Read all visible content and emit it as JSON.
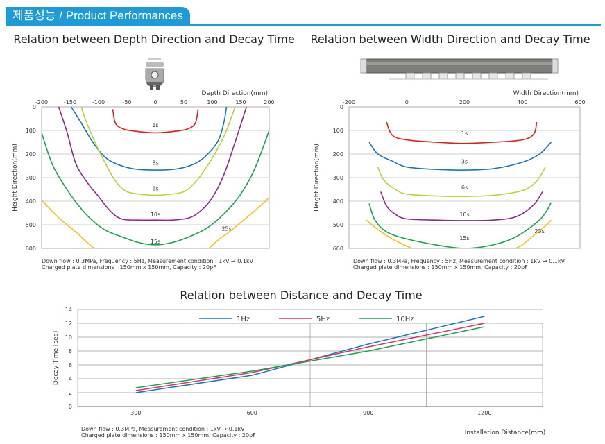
{
  "header": {
    "title_ko": "제품성능",
    "title_en": " / Product Performances"
  },
  "chart_data": [
    {
      "type": "line",
      "title": "Relation between Depth Direction and Decay Time",
      "xlabel": "Depth Direction(mm)",
      "ylabel": "Height Direction(mm)",
      "xlim": [
        -200,
        200
      ],
      "ylim": [
        0,
        600
      ],
      "xticks": [
        "-200",
        "-150",
        "-100",
        "-50",
        "0",
        "50",
        "100",
        "150",
        "200"
      ],
      "yticks": [
        "0",
        "100",
        "200",
        "300",
        "400",
        "500",
        "600"
      ],
      "notes": [
        "Down flow : 0.3MPa, Frequency : 5Hz, Measurement condition : 1kV → 0.1kV",
        "Charged plate dimensions : 150mm x 150mm, Capacity : 20pF"
      ],
      "series": [
        {
          "name": "1s",
          "color": "#e02020",
          "label_at": [
            0,
            85
          ],
          "x": [
            -75,
            -70,
            -55,
            -30,
            0,
            30,
            55,
            70,
            75
          ],
          "y": [
            10,
            70,
            95,
            105,
            110,
            105,
            95,
            70,
            10
          ]
        },
        {
          "name": "3s",
          "color": "#1a75bb",
          "label_at": [
            0,
            245
          ],
          "x": [
            -148,
            -130,
            -110,
            -90,
            -70,
            -40,
            0,
            40,
            70,
            90,
            110,
            120,
            125
          ],
          "y": [
            0,
            70,
            150,
            210,
            240,
            262,
            268,
            262,
            240,
            205,
            145,
            70,
            0
          ]
        },
        {
          "name": "6s",
          "color": "#b8d238",
          "label_at": [
            0,
            355
          ],
          "x": [
            -130,
            -125,
            -110,
            -90,
            -70,
            -50,
            -20,
            0,
            20,
            50,
            70,
            90,
            110,
            125,
            140
          ],
          "y": [
            0,
            40,
            130,
            230,
            315,
            360,
            372,
            375,
            372,
            360,
            320,
            255,
            175,
            100,
            0
          ]
        },
        {
          "name": "10s",
          "color": "#8a2a8a",
          "label_at": [
            0,
            465
          ],
          "x": [
            -170,
            -155,
            -140,
            -120,
            -100,
            -80,
            -60,
            -30,
            0,
            30,
            60,
            80,
            100,
            120,
            140,
            160
          ],
          "y": [
            0,
            110,
            240,
            320,
            380,
            440,
            475,
            480,
            480,
            480,
            470,
            440,
            385,
            290,
            150,
            0
          ]
        },
        {
          "name": "15s",
          "color": "#1ea050",
          "label_at": [
            0,
            580
          ],
          "x": [
            -200,
            -180,
            -150,
            -120,
            -90,
            -60,
            -30,
            0,
            30,
            60,
            90,
            120,
            150,
            175,
            200
          ],
          "y": [
            110,
            250,
            370,
            460,
            520,
            550,
            575,
            585,
            575,
            550,
            515,
            455,
            370,
            260,
            100
          ]
        },
        {
          "name": "25s",
          "color": "#f2c21b",
          "label_at": [
            125,
            525
          ],
          "x": [
            -200,
            -170,
            -140,
            -120,
            -100
          ],
          "y": [
            395,
            470,
            530,
            575,
            615
          ]
        },
        {
          "name": "",
          "color": "#f2c21b",
          "x": [
            90,
            110,
            130,
            150,
            175,
            200
          ],
          "y": [
            610,
            565,
            530,
            490,
            440,
            385
          ]
        }
      ]
    },
    {
      "type": "line",
      "title": "Relation between Width Direction and Decay Time",
      "xlabel": "Width Direction(mm)",
      "ylabel": "Height Direction(mm)",
      "xlim": [
        -200,
        600
      ],
      "ylim": [
        0,
        600
      ],
      "xticks": [
        "-200",
        "0",
        "200",
        "400",
        "600"
      ],
      "yticks": [
        "0",
        "100",
        "200",
        "300",
        "400",
        "500",
        "600"
      ],
      "notes": [
        "Down flow : 0.3MPa, Frequency : 5Hz, Measurement condition : 1kV → 0.1kV",
        "Charged plate dimensions : 150mm x 150mm, Capacity : 20pF"
      ],
      "series": [
        {
          "name": "1s",
          "color": "#e02020",
          "label_at": [
            200,
            120
          ],
          "x": [
            -70,
            -50,
            0,
            100,
            200,
            300,
            400,
            440,
            450
          ],
          "y": [
            65,
            120,
            140,
            150,
            155,
            150,
            140,
            115,
            65
          ]
        },
        {
          "name": "3s",
          "color": "#1a75bb",
          "label_at": [
            200,
            240
          ],
          "x": [
            -130,
            -100,
            -50,
            0,
            100,
            200,
            300,
            400,
            460,
            500
          ],
          "y": [
            150,
            200,
            230,
            255,
            265,
            268,
            262,
            235,
            200,
            150
          ]
        },
        {
          "name": "6s",
          "color": "#b8d238",
          "label_at": [
            200,
            350
          ],
          "x": [
            -100,
            -80,
            -40,
            0,
            100,
            200,
            300,
            400,
            450,
            480
          ],
          "y": [
            255,
            310,
            350,
            370,
            378,
            380,
            375,
            355,
            315,
            255
          ]
        },
        {
          "name": "10s",
          "color": "#8a2a8a",
          "label_at": [
            200,
            465
          ],
          "x": [
            -90,
            -70,
            -40,
            0,
            100,
            200,
            300,
            380,
            440,
            470
          ],
          "y": [
            360,
            420,
            455,
            475,
            480,
            482,
            480,
            465,
            415,
            360
          ]
        },
        {
          "name": "15s",
          "color": "#1ea050",
          "label_at": [
            200,
            565
          ],
          "x": [
            -130,
            -110,
            -70,
            0,
            100,
            200,
            300,
            380,
            450,
            480,
            500
          ],
          "y": [
            410,
            480,
            530,
            560,
            585,
            600,
            585,
            550,
            490,
            450,
            405
          ]
        },
        {
          "name": "25s",
          "color": "#f2c21b",
          "label_at": [
            460,
            535
          ],
          "x": [
            -140,
            -100,
            -50,
            0,
            30
          ],
          "y": [
            480,
            520,
            560,
            590,
            605
          ]
        },
        {
          "name": "",
          "color": "#f2c21b",
          "x": [
            360,
            400,
            440,
            480,
            500
          ],
          "y": [
            610,
            585,
            545,
            505,
            480
          ]
        }
      ]
    },
    {
      "type": "line",
      "title": "Relation between Distance and Decay Time",
      "xlabel": "Installation Distance(mm)",
      "ylabel": "Decay Time [sec]",
      "xlim": [
        150,
        1350
      ],
      "ylim": [
        0,
        14
      ],
      "xticks": [
        "300",
        "600",
        "900",
        "1200"
      ],
      "yticks": [
        "0",
        "2",
        "4",
        "6",
        "8",
        "10",
        "12",
        "14"
      ],
      "notes": [
        "Down flow : 0.3MPa, Measurement condition : 1kV → 0.1kV",
        "Charged plate dimensions : 150mm x 150mm, Capacity : 20pF"
      ],
      "series": [
        {
          "name": "1Hz",
          "color": "#1a75bb",
          "x": [
            300,
            600,
            900,
            1200
          ],
          "y": [
            2.0,
            4.5,
            9.0,
            13.0
          ]
        },
        {
          "name": "5Hz",
          "color": "#e0306a",
          "x": [
            300,
            600,
            900,
            1200
          ],
          "y": [
            2.3,
            4.9,
            8.6,
            12.0
          ]
        },
        {
          "name": "10Hz",
          "color": "#1ea050",
          "x": [
            300,
            600,
            900,
            1200
          ],
          "y": [
            2.7,
            5.1,
            8.0,
            11.5
          ]
        }
      ]
    }
  ]
}
